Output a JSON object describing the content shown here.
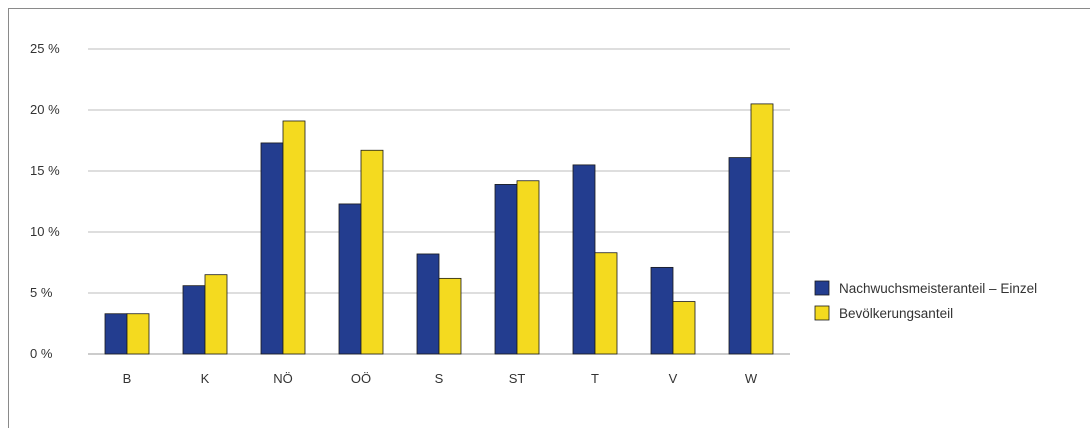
{
  "chart_data": {
    "type": "bar",
    "categories": [
      "B",
      "K",
      "NÖ",
      "OÖ",
      "S",
      "ST",
      "T",
      "V",
      "W"
    ],
    "series": [
      {
        "name": "Nachwuchsmeisteranteil – Einzel",
        "color": "#233d8f",
        "values": [
          3.3,
          5.6,
          17.3,
          12.3,
          8.2,
          13.9,
          15.5,
          7.1,
          16.1
        ]
      },
      {
        "name": "Bevölkerungsanteil",
        "color": "#f4da1f",
        "values": [
          3.3,
          6.5,
          19.1,
          16.7,
          6.2,
          14.2,
          8.3,
          4.3,
          20.5
        ]
      }
    ],
    "y_ticks": [
      "0 %",
      "5 %",
      "10 %",
      "15 %",
      "20 %",
      "25 %"
    ],
    "ylim": [
      0,
      25
    ],
    "grid": true,
    "legend_position": "right"
  }
}
